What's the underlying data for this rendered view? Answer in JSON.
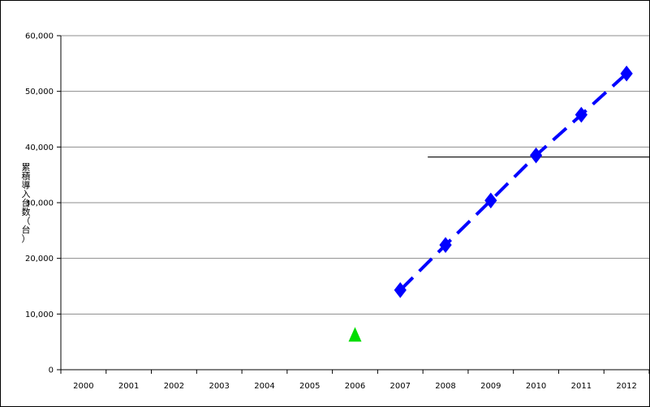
{
  "chart_data": {
    "type": "line",
    "title": "",
    "xlabel": "",
    "ylabel": "累積導入台数（台）",
    "categories": [
      "2000",
      "2001",
      "2002",
      "2003",
      "2004",
      "2005",
      "2006",
      "2007",
      "2008",
      "2009",
      "2010",
      "2011",
      "2012"
    ],
    "ylim": [
      0,
      60000
    ],
    "yticks": [
      0,
      10000,
      20000,
      30000,
      40000,
      50000,
      60000
    ],
    "ytick_labels": [
      "0",
      "10,000",
      "20,000",
      "30,000",
      "40,000",
      "50,000",
      "60,000"
    ],
    "grid": true,
    "legend": "none",
    "series": [
      {
        "style": "dashed-line-diamond",
        "color": "#0000ff",
        "x": [
          "2007",
          "2008",
          "2009",
          "2010",
          "2011",
          "2012"
        ],
        "values": [
          14300,
          22400,
          30400,
          38500,
          45800,
          53200
        ]
      },
      {
        "style": "triangle-marker",
        "color": "#00dd00",
        "x": [
          "2006"
        ],
        "values": [
          6200
        ]
      }
    ],
    "annotations": [
      {
        "type": "reference-line",
        "y": 38200,
        "x_start": "2008",
        "color": "#000000"
      }
    ]
  }
}
